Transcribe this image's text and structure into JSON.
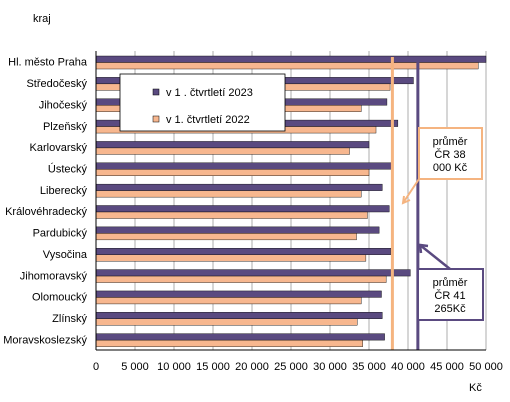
{
  "chart_data": {
    "type": "bar",
    "orientation": "horizontal",
    "y_axis_title": "kraj",
    "x_axis_title": "Kč",
    "categories": [
      "Hl. město Praha",
      "Středočeský",
      "Jihočeský",
      "Plzeňský",
      "Karlovarský",
      "Ústecký",
      "Liberecký",
      "Královéhradecký",
      "Pardubický",
      "Vysočina",
      "Jihomoravský",
      "Olomoucký",
      "Zlínský",
      "Moravskoslezský"
    ],
    "xlim": [
      0,
      50000
    ],
    "x_ticks": [
      0,
      5000,
      10000,
      15000,
      20000,
      25000,
      30000,
      35000,
      40000,
      45000,
      50000
    ],
    "x_tick_labels": [
      "0",
      "5 000",
      "10 000",
      "15 000",
      "20 000",
      "25 000",
      "30 000",
      "35 000",
      "40 000",
      "45 000",
      "50 000"
    ],
    "grid": "vertical",
    "legend_position": "upper-left inside plot",
    "series": [
      {
        "name": "v 1 . čtvrtletí 2023",
        "color": "#5a4a80",
        "values": [
          50000,
          40700,
          37300,
          38700,
          35000,
          38000,
          36700,
          37600,
          36300,
          37800,
          40300,
          36600,
          36700,
          37000
        ]
      },
      {
        "name": "v 1. čtvrtletí 2022",
        "color": "#f7b78f",
        "values": [
          49000,
          37700,
          34000,
          35900,
          32500,
          35000,
          34000,
          34800,
          33400,
          34600,
          37200,
          34000,
          33500,
          34200
        ]
      }
    ],
    "reference_lines": [
      {
        "label_lines": [
          "průměr",
          "ČR 38",
          "000 Kč"
        ],
        "value": 38000,
        "color": "#f5b480"
      },
      {
        "label_lines": [
          "průměr",
          "ČR 41",
          "265Kč"
        ],
        "value": 41265,
        "color": "#5a4a80"
      }
    ]
  }
}
